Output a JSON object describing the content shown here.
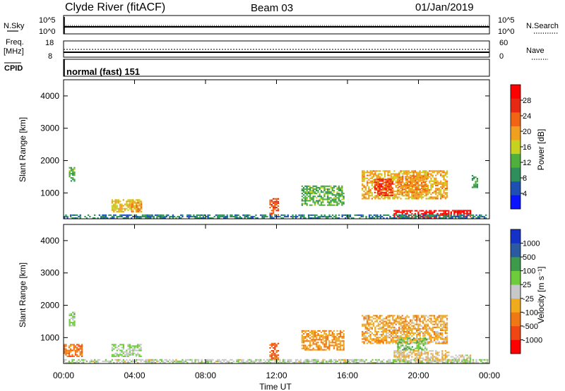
{
  "header": {
    "station": "Clyde River (fitACF)",
    "beam": "Beam 03",
    "date": "01/Jan/2019"
  },
  "top_panels": {
    "nsky_label": "N.Sky",
    "nsky_ticks": [
      "10^5",
      "10^0"
    ],
    "nsearch_label": "N.Search",
    "nsearch_ticks": [
      "10^5",
      "10^0"
    ],
    "freq_label": "Freq.",
    "freq_unit": "[MHz]",
    "freq_ticks": [
      "18",
      "8"
    ],
    "nave_label": "Nave",
    "nave_ticks": [
      "60",
      "0"
    ],
    "cpid_label": "CPID",
    "cpid_value": "normal (fast) 151"
  },
  "colors": {
    "power": [
      "#0a14ff",
      "#1e50b4",
      "#2f8f5a",
      "#4fae3c",
      "#c8d21e",
      "#f0a01e",
      "#f06414",
      "#e62814",
      "#ff0000"
    ],
    "velocity": [
      "#ff0000",
      "#f04614",
      "#f07814",
      "#f0aa1e",
      "#c8c8c8",
      "#6ecc3c",
      "#3c9a4a",
      "#2a5aa0",
      "#1432c8"
    ]
  },
  "chart_data": [
    {
      "type": "heatmap",
      "name": "power",
      "ylabel": "Slant Range [km]",
      "yticks": [
        "4000",
        "3000",
        "2000",
        "1000"
      ],
      "ylim": [
        200,
        4500
      ],
      "xlim": [
        0,
        24
      ],
      "colorbar": {
        "label": "Power [dB]",
        "ticks": [
          "28",
          "24",
          "20",
          "16",
          "12",
          "8",
          "4"
        ],
        "range": [
          0,
          32
        ]
      },
      "regions": [
        {
          "t0": 0.3,
          "t1": 0.6,
          "r0": 1350,
          "r1": 1800,
          "value": 12
        },
        {
          "t0": 2.7,
          "t1": 4.4,
          "r0": 400,
          "r1": 800,
          "value": 18
        },
        {
          "t0": 3.8,
          "t1": 4.4,
          "r0": 400,
          "r1": 700,
          "value": 22
        },
        {
          "t0": 11.6,
          "t1": 12.1,
          "r0": 300,
          "r1": 800,
          "value": 24
        },
        {
          "t0": 13.4,
          "t1": 15.8,
          "r0": 600,
          "r1": 1200,
          "value": 12
        },
        {
          "t0": 16.8,
          "t1": 21.6,
          "r0": 800,
          "r1": 1700,
          "value": 19
        },
        {
          "t0": 17.5,
          "t1": 18.5,
          "r0": 900,
          "r1": 1400,
          "value": 26
        },
        {
          "t0": 18.8,
          "t1": 20.5,
          "r0": 1000,
          "r1": 1500,
          "value": 21
        },
        {
          "t0": 18.6,
          "t1": 21.7,
          "r0": 200,
          "r1": 450,
          "value": 30
        },
        {
          "t0": 21.8,
          "t1": 22.9,
          "r0": 250,
          "r1": 450,
          "value": 29
        },
        {
          "t0": 23.0,
          "t1": 23.3,
          "r0": 1150,
          "r1": 1550,
          "value": 10
        },
        {
          "t0": 0.0,
          "t1": 24.0,
          "r0": 200,
          "r1": 320,
          "value": 8
        }
      ]
    },
    {
      "type": "heatmap",
      "name": "velocity",
      "ylabel": "Slant Range [km]",
      "xlabel": "Time UT",
      "yticks": [
        "4000",
        "3000",
        "2000",
        "1000"
      ],
      "xticks": [
        "00:00",
        "04:00",
        "08:00",
        "12:00",
        "16:00",
        "20:00",
        "00:00"
      ],
      "ylim": [
        200,
        4500
      ],
      "xlim": [
        0,
        24
      ],
      "colorbar": {
        "label": "Velocity [m s⁻¹]",
        "ticks": [
          "1000",
          "500",
          "100",
          "25",
          "-25",
          "-100",
          "-500",
          "-1000"
        ],
        "range": [
          -1250,
          1250
        ]
      },
      "regions": [
        {
          "t0": 0.0,
          "t1": 1.0,
          "r0": 400,
          "r1": 800,
          "value": -600
        },
        {
          "t0": 0.3,
          "t1": 0.6,
          "r0": 1350,
          "r1": 1800,
          "value": 200
        },
        {
          "t0": 2.7,
          "t1": 4.4,
          "r0": 400,
          "r1": 800,
          "value": 150
        },
        {
          "t0": 11.6,
          "t1": 12.1,
          "r0": 300,
          "r1": 800,
          "value": -700
        },
        {
          "t0": 13.4,
          "t1": 15.8,
          "r0": 600,
          "r1": 1200,
          "value": -400
        },
        {
          "t0": 16.8,
          "t1": 21.6,
          "r0": 800,
          "r1": 1700,
          "value": -300
        },
        {
          "t0": 18.8,
          "t1": 20.5,
          "r0": 600,
          "r1": 1000,
          "value": 300
        },
        {
          "t0": 18.6,
          "t1": 21.7,
          "r0": 250,
          "r1": 600,
          "value": -150
        },
        {
          "t0": 21.8,
          "t1": 22.9,
          "r0": 250,
          "r1": 450,
          "value": 40
        },
        {
          "t0": 0.0,
          "t1": 24.0,
          "r0": 200,
          "r1": 320,
          "value": 60
        }
      ]
    }
  ]
}
